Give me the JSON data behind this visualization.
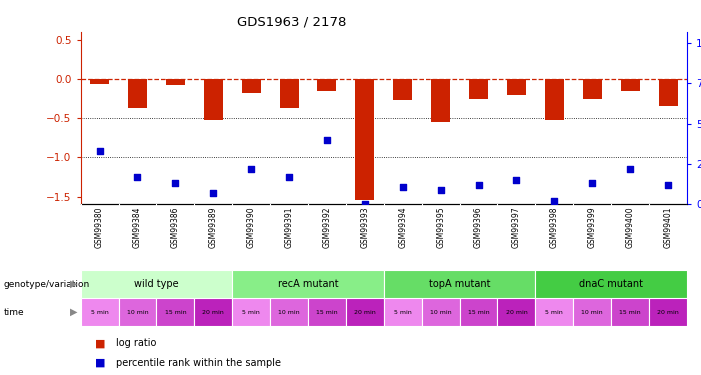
{
  "title": "GDS1963 / 2178",
  "samples": [
    "GSM99380",
    "GSM99384",
    "GSM99386",
    "GSM99389",
    "GSM99390",
    "GSM99391",
    "GSM99392",
    "GSM99393",
    "GSM99394",
    "GSM99395",
    "GSM99396",
    "GSM99397",
    "GSM99398",
    "GSM99399",
    "GSM99400",
    "GSM99401"
  ],
  "log_ratio": [
    -0.07,
    -0.37,
    -0.08,
    -0.52,
    -0.18,
    -0.37,
    -0.15,
    -1.55,
    -0.27,
    -0.55,
    -0.25,
    -0.2,
    -0.53,
    -0.25,
    -0.16,
    -0.35
  ],
  "percentile_rank": [
    33,
    17,
    13,
    7,
    22,
    17,
    40,
    0,
    11,
    9,
    12,
    15,
    2,
    13,
    22,
    12
  ],
  "ylim_left": [
    -1.6,
    0.6
  ],
  "ylim_right": [
    0,
    106.67
  ],
  "bar_color": "#cc2200",
  "scatter_color": "#0000cc",
  "ref_line_color": "#cc2200",
  "dot_line_color": "#000000",
  "groups": [
    {
      "label": "wild type",
      "start": 0,
      "end": 3,
      "color": "#ccffcc"
    },
    {
      "label": "recA mutant",
      "start": 4,
      "end": 7,
      "color": "#88ee88"
    },
    {
      "label": "topA mutant",
      "start": 8,
      "end": 11,
      "color": "#66dd66"
    },
    {
      "label": "dnaC mutant",
      "start": 12,
      "end": 15,
      "color": "#44cc44"
    }
  ],
  "times": [
    "5 min",
    "10 min",
    "15 min",
    "20 min",
    "5 min",
    "10 min",
    "15 min",
    "20 min",
    "5 min",
    "10 min",
    "15 min",
    "20 min",
    "5 min",
    "10 min",
    "15 min",
    "20 min"
  ],
  "time_colors": [
    "#ee88ee",
    "#dd66dd",
    "#cc44cc",
    "#bb22bb",
    "#ee88ee",
    "#dd66dd",
    "#cc44cc",
    "#bb22bb",
    "#ee88ee",
    "#dd66dd",
    "#cc44cc",
    "#bb22bb",
    "#ee88ee",
    "#dd66dd",
    "#cc44cc",
    "#bb22bb"
  ],
  "bg_color": "#ffffff",
  "sample_bg": "#cccccc",
  "genotype_label": "genotype/variation",
  "time_label": "time",
  "legend_items": [
    "log ratio",
    "percentile rank within the sample"
  ]
}
